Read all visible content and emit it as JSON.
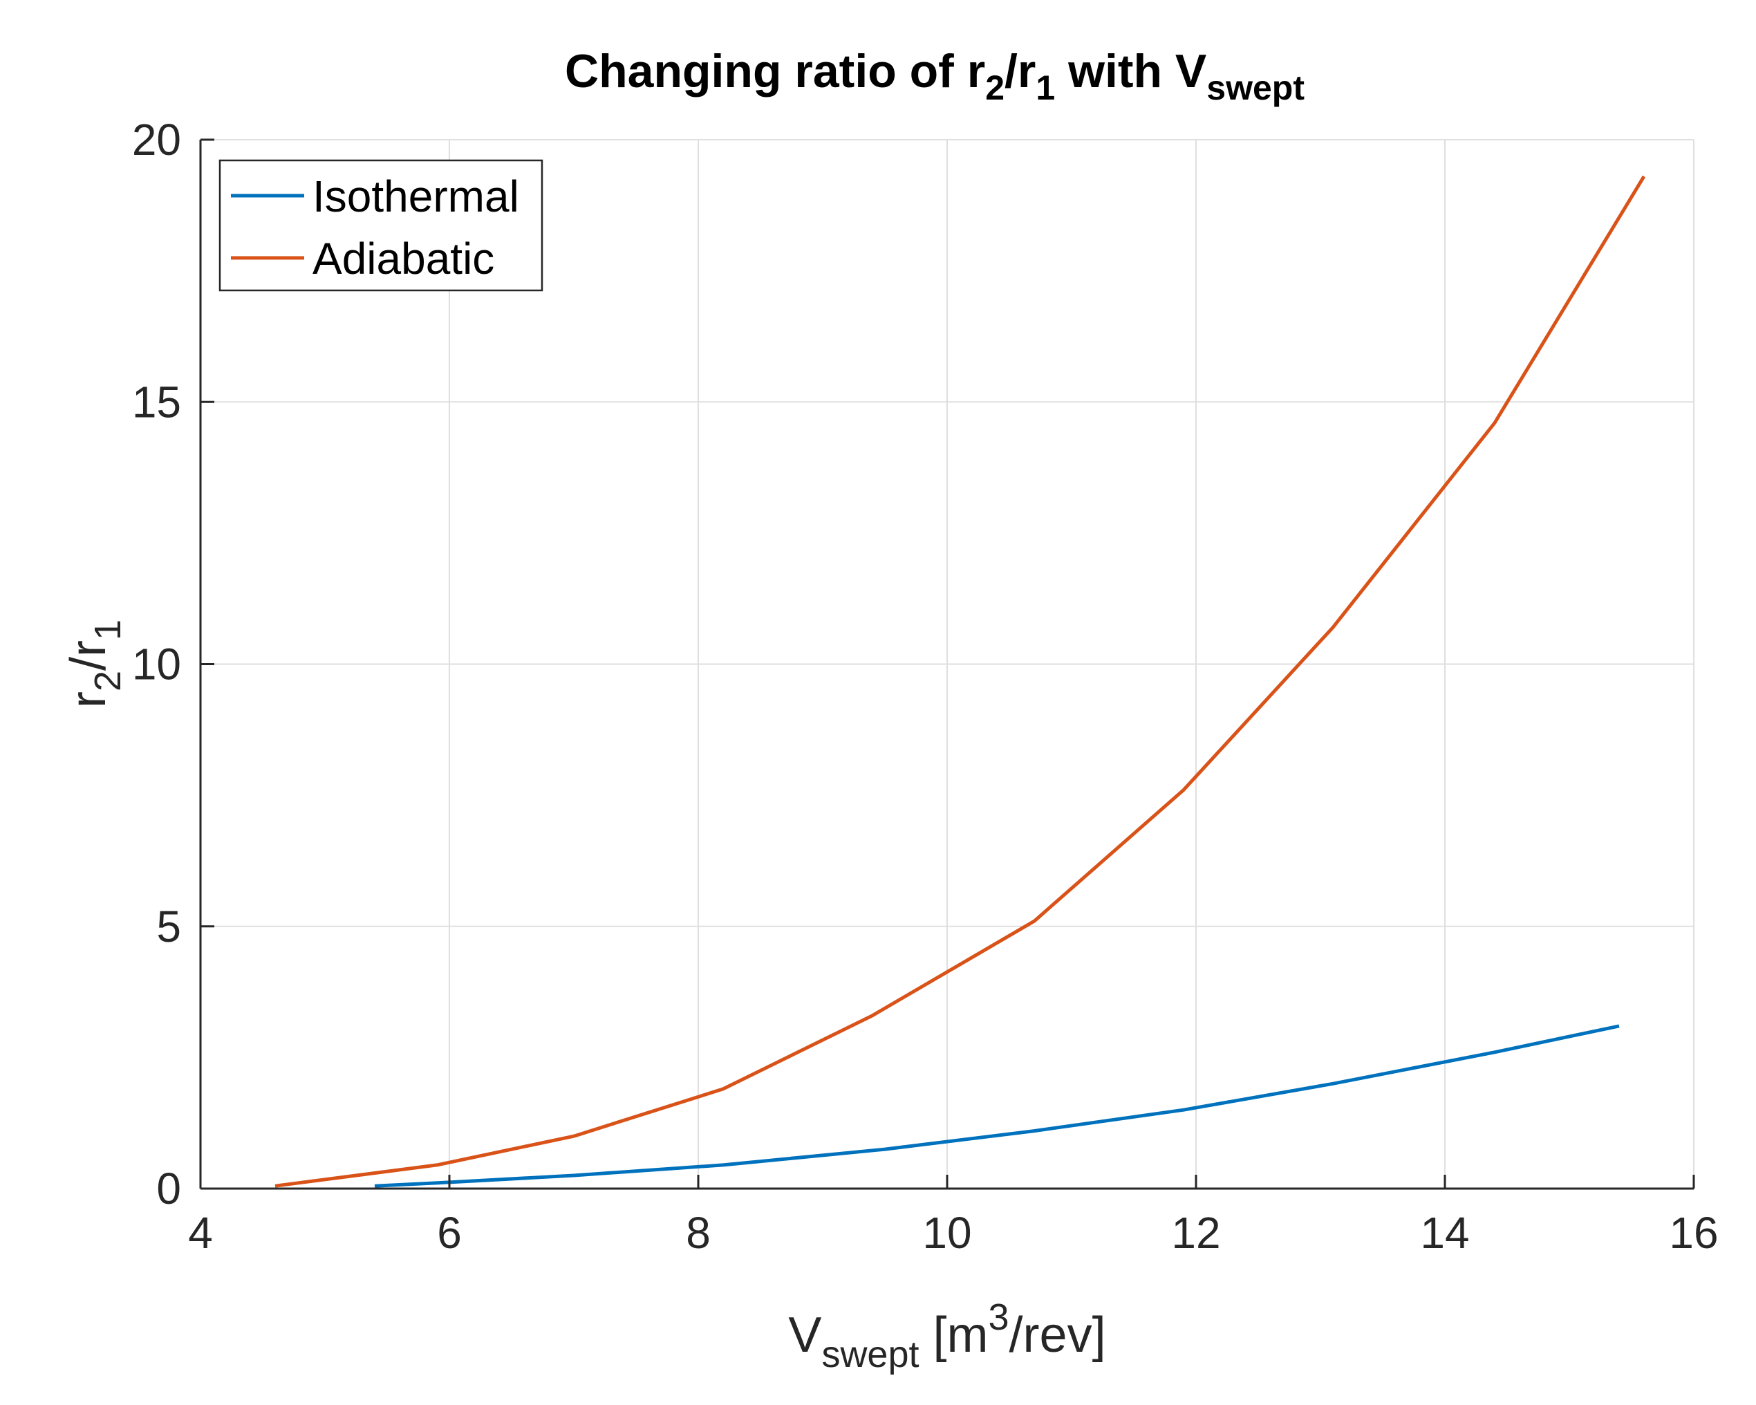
{
  "chart_data": {
    "type": "line",
    "title": {
      "main": "Changing ratio of r",
      "sub1": "2",
      "slash": "/r",
      "sub2": "1",
      "with": " with V",
      "sub3": "swept"
    },
    "xlabel": {
      "v": "V",
      "sub": "swept",
      "unit_pre": " [m",
      "sup": "3",
      "unit_post": "/rev]"
    },
    "ylabel": {
      "r": "r",
      "sub1": "2",
      "slash": "/r",
      "sub2": "1"
    },
    "xlim": [
      4,
      16
    ],
    "ylim": [
      0,
      20
    ],
    "xticks": [
      4,
      6,
      8,
      10,
      12,
      14,
      16
    ],
    "yticks": [
      0,
      5,
      10,
      15,
      20
    ],
    "xtick_labels": [
      "4",
      "6",
      "8",
      "10",
      "12",
      "14",
      "16"
    ],
    "ytick_labels": [
      "0",
      "5",
      "10",
      "15",
      "20"
    ],
    "grid": true,
    "legend_position": "top-left",
    "series": [
      {
        "name": "Isothermal",
        "color": "#0072BD",
        "x": [
          5.4,
          6.0,
          7.0,
          8.2,
          9.5,
          10.7,
          11.9,
          13.1,
          14.4,
          15.4
        ],
        "y": [
          0.05,
          0.12,
          0.25,
          0.45,
          0.75,
          1.1,
          1.5,
          2.0,
          2.6,
          3.1
        ]
      },
      {
        "name": "Adiabatic",
        "color": "#D95319",
        "x": [
          4.6,
          5.9,
          7.0,
          8.2,
          9.4,
          10.7,
          11.9,
          13.1,
          14.4,
          15.6
        ],
        "y": [
          0.05,
          0.45,
          1.0,
          1.9,
          3.3,
          5.1,
          7.6,
          10.7,
          14.6,
          19.3
        ]
      }
    ]
  }
}
